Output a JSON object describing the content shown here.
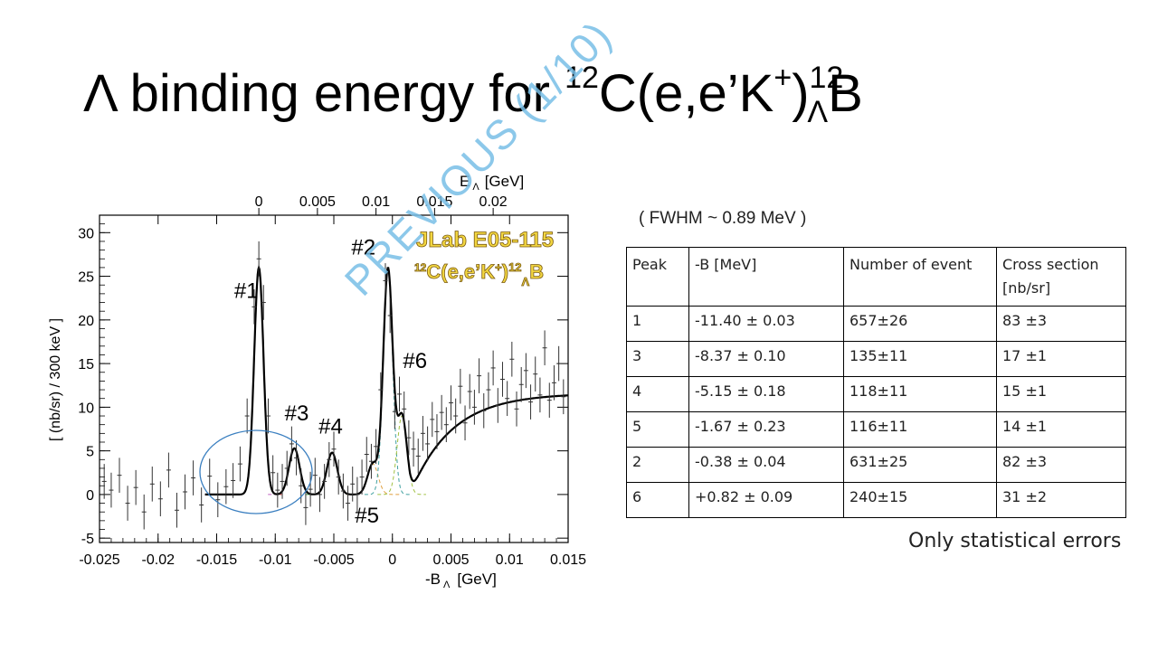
{
  "title": {
    "lead": "Λ binding energy for ",
    "pre_sup": "12",
    "reaction": "C(e,e’K",
    "k_sup": "+",
    "close": ")",
    "post_sup": "12",
    "post_sub": "Λ",
    "product": "B"
  },
  "watermark": "PREVIOUS (1/10)",
  "fwhm_note": "( FWHM ~ 0.89 MeV )",
  "footnote": "Only statistical errors",
  "table": {
    "headers": [
      "Peak",
      "-B [MeV]",
      "Number of event",
      "Cross section [nb/sr]"
    ],
    "rows": [
      [
        "1",
        "-11.40 ± 0.03",
        "657±26",
        "83 ±3"
      ],
      [
        "3",
        "-8.37 ± 0.10",
        "135±11",
        "17 ±1"
      ],
      [
        "4",
        "-5.15 ± 0.18",
        "118±11",
        "15 ±1"
      ],
      [
        "5",
        "-1.67 ± 0.23",
        "116±11",
        "14 ±1"
      ],
      [
        "2",
        "-0.38 ± 0.04",
        "631±25",
        "82 ±3"
      ],
      [
        "6",
        "+0.82 ± 0.09",
        "240±15",
        "31 ±2"
      ]
    ]
  },
  "colors": {
    "watermark": "#78bee6",
    "ellipse": "#3a7fc0",
    "fit": "#000000",
    "experiment_label": "#e8c13a"
  },
  "chart_data": {
    "type": "scatter",
    "xlabel_prefix": "-B",
    "xlabel_sub": "Λ",
    "xlabel_unit": "[GeV]",
    "top_xlabel_prefix": "E",
    "top_xlabel_sub": "Λ",
    "top_xlabel_unit": "[GeV]",
    "ylabel": "[ (nb/sr) / 300 keV ]",
    "xlim": [
      -0.025,
      0.015
    ],
    "ylim": [
      -5.5,
      32
    ],
    "xticks": [
      "-0.025",
      "-0.02",
      "-0.015",
      "-0.01",
      "-0.005",
      "0",
      "0.005",
      "0.01",
      "0.015"
    ],
    "xtick_values": [
      -0.025,
      -0.02,
      -0.015,
      -0.01,
      -0.005,
      0,
      0.005,
      0.01,
      0.015
    ],
    "yticks": [
      "-5",
      "0",
      "5",
      "10",
      "15",
      "20",
      "25",
      "30"
    ],
    "ytick_values": [
      -5,
      0,
      5,
      10,
      15,
      20,
      25,
      30
    ],
    "top_ticks": [
      "0",
      "0.005",
      "0.01",
      "0.015",
      "0.02"
    ],
    "top_tick_values": [
      0,
      0.005,
      0.01,
      0.015,
      0.02
    ],
    "experiment_label": "JLab E05-115",
    "reaction_label": {
      "pre_sup": "12",
      "base": "C(e,e’K",
      "k_sup": "+",
      "close": ")",
      "post_sup": "12",
      "post_sub": "Λ",
      "product": "B"
    },
    "peak_labels": [
      {
        "text": "#1",
        "x": -0.0135,
        "y": 22.5
      },
      {
        "text": "#2",
        "x": -0.0035,
        "y": 27.5
      },
      {
        "text": "#3",
        "x": -0.0092,
        "y": 8.5
      },
      {
        "text": "#4",
        "x": -0.0063,
        "y": 7.0
      },
      {
        "text": "#5",
        "x": -0.0032,
        "y": -3.2
      },
      {
        "text": "#6",
        "x": 0.0009,
        "y": 14.5
      }
    ],
    "peaks": [
      {
        "id": "1",
        "center": -0.0114,
        "amplitude": 26.0,
        "sigma": 0.0004
      },
      {
        "id": "3",
        "center": -0.00837,
        "amplitude": 5.3,
        "sigma": 0.00045
      },
      {
        "id": "4",
        "center": -0.00515,
        "amplitude": 4.8,
        "sigma": 0.00045
      },
      {
        "id": "5",
        "center": -0.00167,
        "amplitude": 3.5,
        "sigma": 0.00045
      },
      {
        "id": "2",
        "center": -0.00038,
        "amplitude": 25.8,
        "sigma": 0.0004
      },
      {
        "id": "6",
        "center": 0.00082,
        "amplitude": 9.0,
        "sigma": 0.00042
      }
    ],
    "background": {
      "threshold": 0.0015,
      "plateau": 11.6,
      "scale": 0.0035
    },
    "points": [
      [
        -0.0246,
        1.5
      ],
      [
        -0.024,
        0.5
      ],
      [
        -0.0233,
        2.2
      ],
      [
        -0.0226,
        -1.0
      ],
      [
        -0.0219,
        0.8
      ],
      [
        -0.0212,
        -2.0
      ],
      [
        -0.0205,
        1.2
      ],
      [
        -0.0198,
        -0.5
      ],
      [
        -0.0191,
        2.8
      ],
      [
        -0.0184,
        -1.8
      ],
      [
        -0.0177,
        0.3
      ],
      [
        -0.017,
        1.9
      ],
      [
        -0.0163,
        -1.2
      ],
      [
        -0.0156,
        2.1
      ],
      [
        -0.0149,
        -0.6
      ],
      [
        -0.0142,
        0.9
      ],
      [
        -0.0136,
        1.6
      ],
      [
        -0.013,
        3.5
      ],
      [
        -0.0124,
        9.0
      ],
      [
        -0.0118,
        21.5
      ],
      [
        -0.0114,
        27.0
      ],
      [
        -0.011,
        22.0
      ],
      [
        -0.0106,
        9.0
      ],
      [
        -0.0102,
        2.5
      ],
      [
        -0.0098,
        0.5
      ],
      [
        -0.0094,
        1.5
      ],
      [
        -0.009,
        3.0
      ],
      [
        -0.0086,
        5.8
      ],
      [
        -0.0082,
        4.2
      ],
      [
        -0.0078,
        1.0
      ],
      [
        -0.0074,
        -1.5
      ],
      [
        -0.007,
        0.6
      ],
      [
        -0.0066,
        2.2
      ],
      [
        -0.0062,
        0.0
      ],
      [
        -0.0058,
        1.5
      ],
      [
        -0.0054,
        4.0
      ],
      [
        -0.005,
        5.2
      ],
      [
        -0.0046,
        2.0
      ],
      [
        -0.0042,
        0.4
      ],
      [
        -0.0038,
        -1.0
      ],
      [
        -0.0034,
        1.2
      ],
      [
        -0.003,
        0.0
      ],
      [
        -0.0026,
        2.0
      ],
      [
        -0.0022,
        4.6
      ],
      [
        -0.0018,
        3.8
      ],
      [
        -0.0014,
        5.5
      ],
      [
        -0.001,
        12.0
      ],
      [
        -0.0006,
        24.5
      ],
      [
        -0.0002,
        20.5
      ],
      [
        0.0002,
        9.5
      ],
      [
        0.0006,
        11.5
      ],
      [
        0.001,
        9.8
      ],
      [
        0.0014,
        6.5
      ],
      [
        0.0018,
        5.2
      ],
      [
        0.0022,
        4.4
      ],
      [
        0.0026,
        7.0
      ],
      [
        0.003,
        5.8
      ],
      [
        0.0034,
        8.6
      ],
      [
        0.0038,
        7.2
      ],
      [
        0.0042,
        9.4
      ],
      [
        0.0046,
        8.0
      ],
      [
        0.005,
        10.5
      ],
      [
        0.0054,
        9.0
      ],
      [
        0.0058,
        12.4
      ],
      [
        0.0062,
        8.2
      ],
      [
        0.0066,
        11.8
      ],
      [
        0.007,
        10.0
      ],
      [
        0.0074,
        13.6
      ],
      [
        0.0078,
        9.6
      ],
      [
        0.0082,
        12.0
      ],
      [
        0.0086,
        14.5
      ],
      [
        0.009,
        10.2
      ],
      [
        0.0094,
        13.2
      ],
      [
        0.0098,
        11.0
      ],
      [
        0.0102,
        15.5
      ],
      [
        0.0106,
        9.8
      ],
      [
        0.011,
        12.6
      ],
      [
        0.0114,
        14.2
      ],
      [
        0.0118,
        10.6
      ],
      [
        0.0122,
        13.8
      ],
      [
        0.0126,
        11.4
      ],
      [
        0.013,
        16.8
      ],
      [
        0.0134,
        10.8
      ],
      [
        0.0138,
        12.8
      ],
      [
        0.0142,
        15.0
      ],
      [
        0.0146,
        11.2
      ]
    ],
    "error": 2.0
  }
}
